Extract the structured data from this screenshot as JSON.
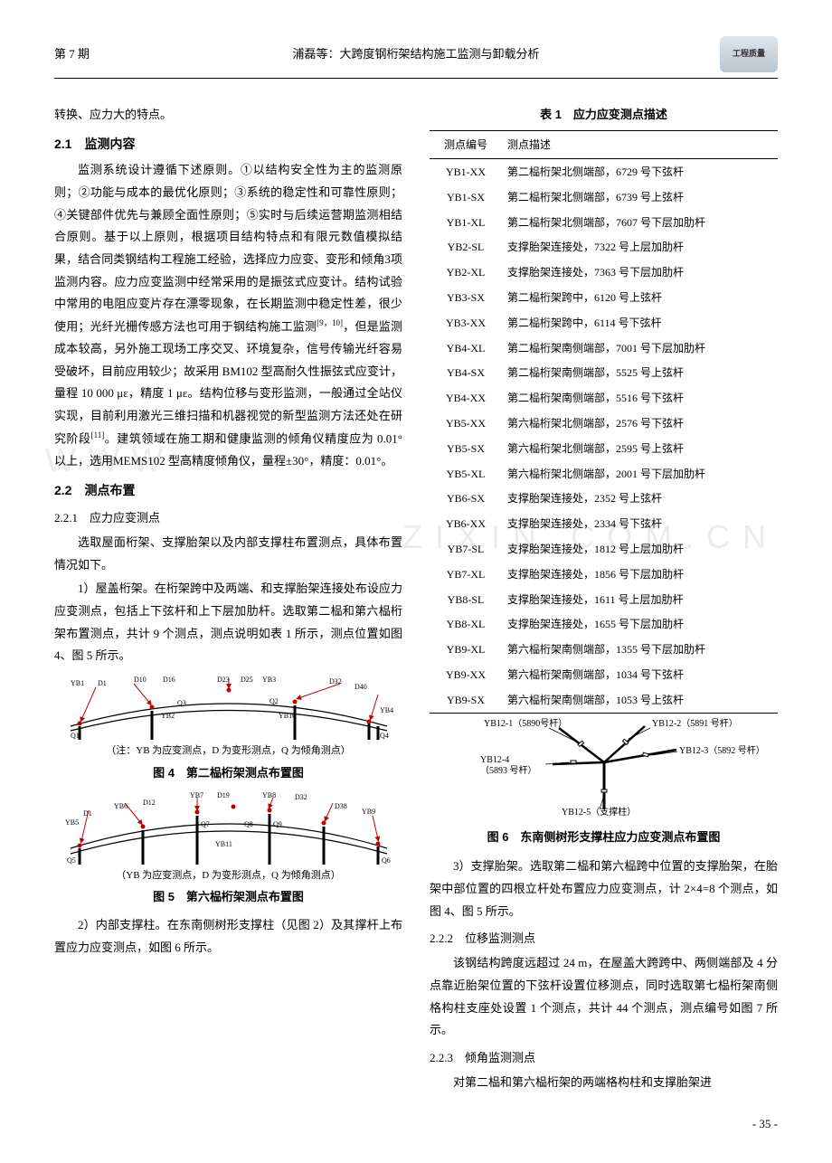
{
  "header": {
    "issue": "第 7 期",
    "title": "浦磊等：大跨度钢桁架结构施工监测与卸载分析",
    "logo": "工程质量"
  },
  "left": {
    "line1": "转换、应力大的特点。",
    "s21": "2.1　监测内容",
    "p1": "监测系统设计遵循下述原则。①以结构安全性为主的监测原则；②功能与成本的最优化原则；③系统的稳定性和可靠性原则；④关键部件优先与兼顾全面性原则；⑤实时与后续运营期监测相结合原则。基于以上原则，根据项目结构特点和有限元数值模拟结果，结合同类钢结构工程施工经验，选择应力应变、变形和倾角3项监测内容。应力应变监测中经常采用的是振弦式应变计。结构试验中常用的电阻应变片存在漂零现象，在长期监测中稳定性差，很少使用；光纤光栅传感方法也可用于钢结构施工监测",
    "p1_tail": "，但是监测成本较高，另外施工现场工序交叉、环境复杂，信号传输光纤容易受破坏，目前应用较少；故采用 BM102 型高耐久性振弦式应变计，量程 10 000 με，精度 1 με。结构位移与变形监测，一般通过全站仪实现，目前利用激光三维扫描和机器视觉的新型监测方法还处在研究阶段",
    "p1_tail2": "。建筑领域在施工期和健康监测的倾角仪精度应为 0.01° 以上，选用MEMS102 型高精度倾角仪，量程±30°，精度：0.01°。",
    "sup1": "[9，10]",
    "sup2": "[11]",
    "s22": "2.2　测点布置",
    "s221": "2.2.1　应力应变测点",
    "p2": "选取屋面桁架、支撑胎架以及内部支撑柱布置测点，具体布置情况如下。",
    "p3": "1）屋盖桁架。在桁架跨中及两端、和支撑胎架连接处布设应力应变测点，包括上下弦杆和上下层加肋杆。选取第二榀和第六榀桁架布置测点，共计 9 个测点，测点说明如表 1 所示，测点位置如图 4、图 5 所示。",
    "fig4_note": "（注：YB 为应变测点，D 为变形测点，Q 为倾角测点）",
    "fig4_cap": "图 4　第二榀桁架测点布置图",
    "fig5_note": "（YB 为应变测点，D 为变形测点，Q 为倾角测点）",
    "fig5_cap": "图 5　第六榀桁架测点布置图",
    "p4": "2）内部支撑柱。在东南侧树形支撑柱（见图 2）及其撑杆上布置应力应变测点，如图 6 所示。"
  },
  "right": {
    "table_title": "表 1　应力应变测点描述",
    "th1": "测点编号",
    "th2": "测点描述",
    "rows": [
      [
        "YB1-XX",
        "第二榀桁架北侧端部，6729 号下弦杆"
      ],
      [
        "YB1-SX",
        "第二榀桁架北侧端部，6739 号上弦杆"
      ],
      [
        "YB1-XL",
        "第二榀桁架北侧端部，7607 号下层加肋杆"
      ],
      [
        "YB2-SL",
        "支撑胎架连接处，7322 号上层加肋杆"
      ],
      [
        "YB2-XL",
        "支撑胎架连接处，7363 号下层加肋杆"
      ],
      [
        "YB3-SX",
        "第二榀桁架跨中，6120 号上弦杆"
      ],
      [
        "YB3-XX",
        "第二榀桁架跨中，6114 号下弦杆"
      ],
      [
        "YB4-XL",
        "第二榀桁架南侧端部，7001 号下层加肋杆"
      ],
      [
        "YB4-SX",
        "第二榀桁架南侧端部，5525 号上弦杆"
      ],
      [
        "YB4-XX",
        "第二榀桁架南侧端部，5516 号下弦杆"
      ],
      [
        "YB5-XX",
        "第六榀桁架北侧端部，2576 号下弦杆"
      ],
      [
        "YB5-SX",
        "第六榀桁架北侧端部，2595 号上弦杆"
      ],
      [
        "YB5-XL",
        "第六榀桁架北侧端部，2001 号下层加肋杆"
      ],
      [
        "YB6-SX",
        "支撑胎架连接处，2352 号上弦杆"
      ],
      [
        "YB6-XX",
        "支撑胎架连接处，2334 号下弦杆"
      ],
      [
        "YB7-SL",
        "支撑胎架连接处，1812 号上层加肋杆"
      ],
      [
        "YB7-XL",
        "支撑胎架连接处，1856 号下层加肋杆"
      ],
      [
        "YB8-SL",
        "支撑胎架连接处，1611 号上层加肋杆"
      ],
      [
        "YB8-XL",
        "支撑胎架连接处，1655 号下层加肋杆"
      ],
      [
        "YB9-XL",
        "第六榀桁架南侧端部，1355 号下层加肋杆"
      ],
      [
        "YB9-XX",
        "第六榀桁架南侧端部，1034 号下弦杆"
      ],
      [
        "YB9-SX",
        "第六榀桁架南侧端部，1053 号上弦杆"
      ]
    ],
    "tree": {
      "l1": "YB12-1（5890号杆）",
      "l2": "YB12-2（5891 号杆）",
      "l3": "YB12-3（5892 号杆）",
      "l4": "YB12-4\n（5893 号杆）",
      "l4a": "YB12-4",
      "l4b": "（5893 号杆）",
      "l5": "YB12-5（支撑柱）"
    },
    "fig6_cap": "图 6　东南侧树形支撑柱应力应变测点布置图",
    "p5": "3）支撑胎架。选取第二榀和第六榀跨中位置的支撑胎架，在胎架中部位置的四根立杆处布置应力应变测点，计 2×4=8 个测点，如图 4、图 5 所示。",
    "s222": "2.2.2　位移监测测点",
    "p6": "该钢结构跨度远超过 24 m，在屋盖大跨跨中、两侧端部及 4 分点靠近胎架位置的下弦杆设置位移测点，同时选取第七榀桁架南侧格构柱支座处设置 1 个测点，共计 44 个测点，测点编号如图 7 所示。",
    "s223": "2.2.3　倾角监测测点",
    "p7": "对第二榀和第六榀桁架的两端格构柱和支撑胎架进"
  },
  "pagenum": "- 35 -",
  "fig4": {
    "labels_top": [
      "D1",
      "D10",
      "D16",
      "D23",
      "D25",
      "YB3",
      "D32"
    ],
    "labels_left": [
      "YB1",
      "Q1"
    ],
    "labels_mid": [
      "YB2",
      "Q3",
      "D40",
      "YB10",
      "Q2"
    ],
    "labels_right": [
      "YB4",
      "Q4"
    ],
    "colors": {
      "arrow": "#c00000",
      "joint": "#c00000",
      "line": "#000"
    }
  },
  "fig5": {
    "labels_top": [
      "YB7",
      "D19",
      "YB8",
      "D32"
    ],
    "labels_second": [
      "YB6",
      "D12",
      "D38",
      "YB9"
    ],
    "labels_left": [
      "YB5",
      "D1",
      "Q5"
    ],
    "labels_mid": [
      "Q7",
      "YB11",
      "Q8",
      "Q9"
    ],
    "labels_right": [
      "Q6"
    ],
    "colors": {
      "arrow": "#c00000",
      "joint": "#c00000",
      "line": "#000"
    }
  }
}
